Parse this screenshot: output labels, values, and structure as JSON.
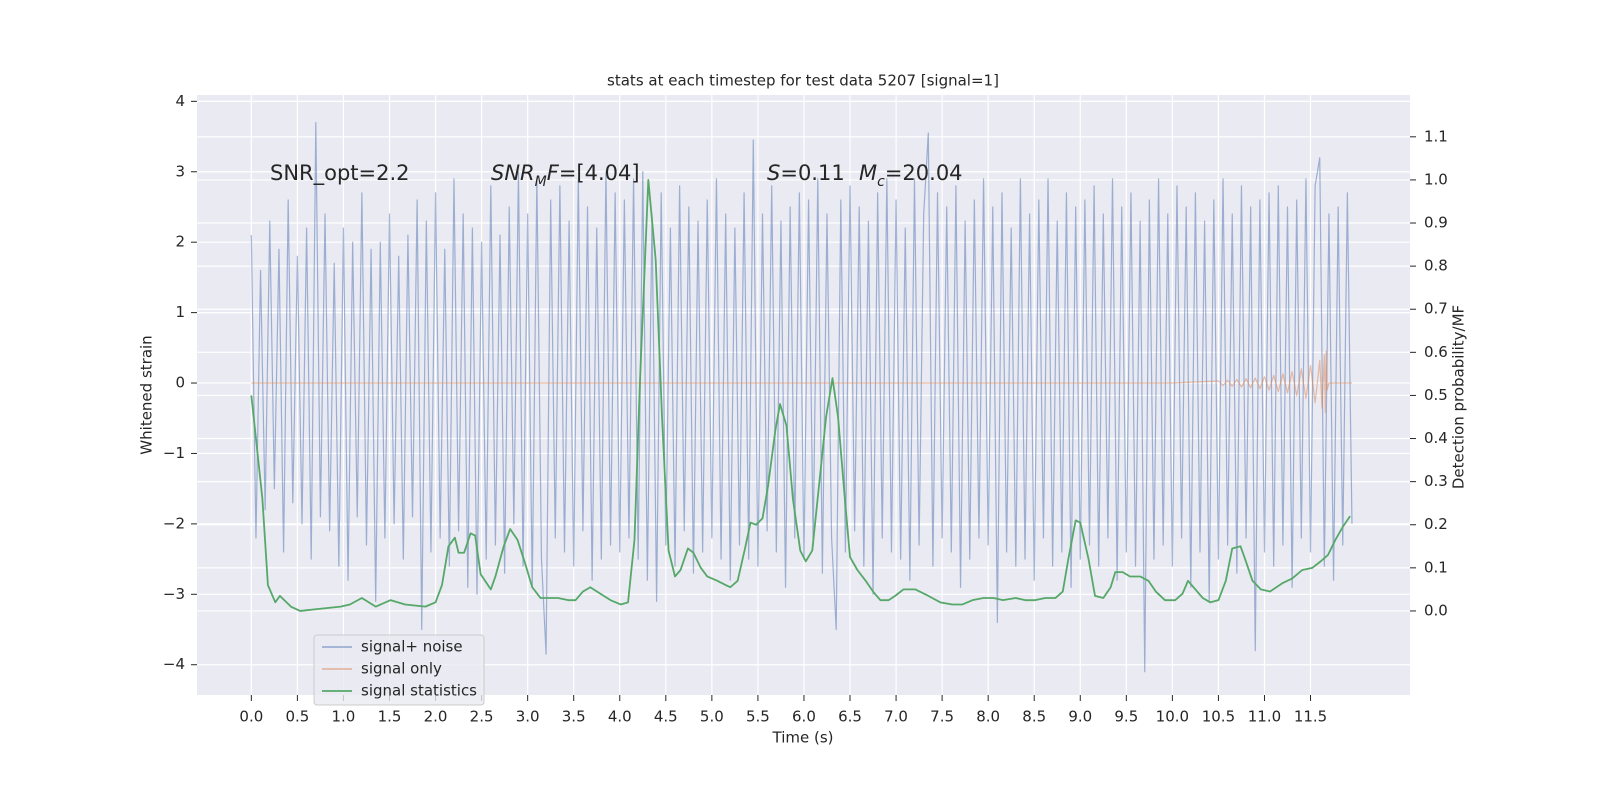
{
  "chart_data": {
    "type": "line",
    "title": "stats at each timestep for test data 5207 [signal=1]",
    "xlabel": "Time (s)",
    "ylabel": "Whitened strain",
    "y2label": "Detection probability/MF",
    "xlim": [
      -0.59,
      12.58
    ],
    "ylim": [
      -4.43,
      4.09
    ],
    "y2lim": [
      -0.195,
      1.197
    ],
    "xticks": [
      {
        "value": 0,
        "label": "0.0"
      },
      0.5,
      {
        "value": 1,
        "label": "1.0"
      },
      1.5,
      {
        "value": 2,
        "label": "2.0"
      },
      2.5,
      {
        "value": 3,
        "label": "3.0"
      },
      3.5,
      {
        "value": 4,
        "label": "4.0"
      },
      4.5,
      {
        "value": 5,
        "label": "5.0"
      },
      5.5,
      {
        "value": 6,
        "label": "6.0"
      },
      6.5,
      {
        "value": 7,
        "label": "7.0"
      },
      7.5,
      {
        "value": 8,
        "label": "8.0"
      },
      8.5,
      {
        "value": 9,
        "label": "9.0"
      },
      9.5,
      {
        "value": 10,
        "label": "10.0"
      },
      10.5,
      {
        "value": 11,
        "label": "11.0"
      },
      11.5
    ],
    "yticks": [
      {
        "value": -4,
        "label": "−4"
      },
      {
        "value": -3,
        "label": "−3"
      },
      {
        "value": -2,
        "label": "−2"
      },
      {
        "value": -1,
        "label": "−1"
      },
      0,
      1,
      2,
      3,
      4
    ],
    "y2ticks": [
      {
        "value": 0,
        "label": "0.0"
      },
      0.1,
      0.2,
      0.3,
      0.4,
      0.5,
      0.6,
      0.7,
      0.8,
      0.9,
      {
        "value": 1,
        "label": "1.0"
      },
      1.1
    ],
    "grid": true,
    "legend": "lower left",
    "annotations": [
      [
        {
          "text": "SNR_opt=2.2"
        }
      ],
      [
        {
          "text": "SNR",
          "style": "italic"
        },
        {
          "text": "M",
          "style": "italic-sub"
        },
        {
          "text": "F",
          "style": "italic"
        },
        {
          "text": "=[4.04]"
        }
      ],
      [
        {
          "text": "S",
          "style": "italic"
        },
        {
          "text": "=0.11"
        }
      ],
      [
        {
          "text": "M",
          "style": "italic"
        },
        {
          "text": "c",
          "style": "italic-sub"
        },
        {
          "text": "=20.04"
        }
      ]
    ],
    "series": [
      {
        "name": "signal+ noise",
        "color": "#4c72b0",
        "opacity": 0.5,
        "axis": "y",
        "x": [
          0,
          0.05,
          0.1,
          0.15,
          0.2,
          0.25,
          0.3,
          0.35,
          0.4,
          0.45,
          0.5,
          0.55,
          0.6,
          0.65,
          0.7,
          0.75,
          0.8,
          0.85,
          0.9,
          0.95,
          1,
          1.05,
          1.1,
          1.15,
          1.2,
          1.25,
          1.3,
          1.35,
          1.4,
          1.45,
          1.5,
          1.55,
          1.6,
          1.65,
          1.7,
          1.75,
          1.8,
          1.85,
          1.9,
          1.95,
          2,
          2.05,
          2.1,
          2.15,
          2.2,
          2.25,
          2.3,
          2.35,
          2.4,
          2.45,
          2.5,
          2.55,
          2.6,
          2.65,
          2.7,
          2.75,
          2.8,
          2.85,
          2.9,
          2.95,
          3,
          3.05,
          3.1,
          3.15,
          3.2,
          3.25,
          3.3,
          3.35,
          3.4,
          3.45,
          3.5,
          3.55,
          3.6,
          3.65,
          3.7,
          3.75,
          3.8,
          3.85,
          3.9,
          3.95,
          4,
          4.05,
          4.1,
          4.15,
          4.2,
          4.25,
          4.3,
          4.35,
          4.4,
          4.45,
          4.5,
          4.55,
          4.6,
          4.65,
          4.7,
          4.75,
          4.8,
          4.85,
          4.9,
          4.95,
          5,
          5.05,
          5.1,
          5.15,
          5.2,
          5.25,
          5.3,
          5.35,
          5.4,
          5.45,
          5.5,
          5.55,
          5.6,
          5.65,
          5.7,
          5.75,
          5.8,
          5.85,
          5.9,
          5.95,
          6,
          6.05,
          6.1,
          6.15,
          6.2,
          6.25,
          6.3,
          6.35,
          6.4,
          6.45,
          6.5,
          6.55,
          6.6,
          6.65,
          6.7,
          6.75,
          6.8,
          6.85,
          6.9,
          6.95,
          7,
          7.05,
          7.1,
          7.15,
          7.2,
          7.25,
          7.3,
          7.35,
          7.4,
          7.45,
          7.5,
          7.55,
          7.6,
          7.65,
          7.7,
          7.75,
          7.8,
          7.85,
          7.9,
          7.95,
          8,
          8.05,
          8.1,
          8.15,
          8.2,
          8.25,
          8.3,
          8.35,
          8.4,
          8.45,
          8.5,
          8.55,
          8.6,
          8.65,
          8.7,
          8.75,
          8.8,
          8.85,
          8.9,
          8.95,
          9,
          9.05,
          9.1,
          9.15,
          9.2,
          9.25,
          9.3,
          9.35,
          9.4,
          9.45,
          9.5,
          9.55,
          9.6,
          9.65,
          9.7,
          9.75,
          9.8,
          9.85,
          9.9,
          9.95,
          10,
          10.05,
          10.1,
          10.15,
          10.2,
          10.25,
          10.3,
          10.35,
          10.4,
          10.45,
          10.5,
          10.55,
          10.6,
          10.65,
          10.7,
          10.75,
          10.8,
          10.85,
          10.9,
          10.95,
          11,
          11.05,
          11.1,
          11.15,
          11.2,
          11.25,
          11.3,
          11.35,
          11.4,
          11.45,
          11.5,
          11.55,
          11.6,
          11.65,
          11.7,
          11.75,
          11.8,
          11.85,
          11.9,
          11.95
        ],
        "values": [
          2.1,
          -2.2,
          1.6,
          -1.8,
          2.3,
          -1.5,
          1.9,
          -2.4,
          2.6,
          -1.7,
          1.8,
          -2.0,
          2.2,
          -2.5,
          3.7,
          -1.9,
          2.4,
          -2.1,
          1.7,
          -2.6,
          2.2,
          -2.8,
          2.0,
          -1.9,
          2.7,
          -2.3,
          1.9,
          -3.1,
          2.0,
          -2.2,
          2.4,
          -2.0,
          1.8,
          -2.5,
          2.1,
          -1.9,
          2.6,
          -3.5,
          2.3,
          -2.4,
          2.7,
          -2.2,
          1.9,
          -2.6,
          2.9,
          -2.1,
          2.4,
          -2.9,
          2.2,
          -3.0,
          2.0,
          -2.5,
          2.8,
          -2.3,
          2.1,
          -2.7,
          2.5,
          -2.0,
          3.0,
          -2.6,
          2.4,
          -2.9,
          2.9,
          -2.5,
          -3.85,
          2.6,
          -2.2,
          2.8,
          -2.4,
          2.3,
          -2.6,
          2.9,
          -2.1,
          2.5,
          -2.8,
          2.2,
          -2.5,
          3.0,
          -2.3,
          2.7,
          -2.4,
          2.6,
          -2.2,
          2.9,
          -2.5,
          3.0,
          -2.8,
          2.4,
          -3.1,
          2.7,
          -2.3,
          2.2,
          -2.6,
          2.8,
          -2.1,
          2.5,
          -2.7,
          2.3,
          -2.4,
          2.6,
          -2.2,
          2.9,
          -2.5,
          2.4,
          -2.8,
          2.2,
          -2.3,
          2.7,
          -2.5,
          3.45,
          -2.6,
          2.4,
          -2.1,
          2.8,
          -2.4,
          2.3,
          -2.9,
          2.5,
          -2.2,
          2.7,
          -2.5,
          2.6,
          -2.3,
          2.9,
          -2.7,
          2.4,
          -2.2,
          -3.5,
          2.6,
          -2.4,
          2.8,
          -2.1,
          2.5,
          -2.6,
          2.3,
          -3.0,
          2.7,
          -2.2,
          2.9,
          -2.4,
          2.6,
          -2.5,
          2.2,
          -2.8,
          2.9,
          -2.3,
          2.4,
          3.55,
          -2.6,
          2.7,
          -2.2,
          2.5,
          -2.4,
          2.8,
          -2.9,
          2.3,
          -2.5,
          2.6,
          -2.2,
          2.9,
          -2.3,
          2.5,
          -3.4,
          2.7,
          -2.4,
          2.2,
          -2.6,
          2.9,
          -2.5,
          2.4,
          -2.8,
          2.6,
          -2.2,
          2.9,
          -2.6,
          2.3,
          -2.4,
          2.7,
          -2.9,
          2.5,
          -2.5,
          2.6,
          -2.3,
          2.8,
          -2.6,
          2.4,
          -2.2,
          2.9,
          -2.8,
          2.5,
          -2.4,
          2.7,
          -2.6,
          2.3,
          -4.1,
          2.6,
          -2.5,
          2.9,
          -2.3,
          2.4,
          -2.6,
          2.8,
          -2.2,
          2.5,
          -2.9,
          2.7,
          -2.4,
          2.3,
          -3.1,
          2.6,
          -2.5,
          2.9,
          -2.3,
          2.4,
          -2.7,
          2.8,
          -2.2,
          2.5,
          -3.8,
          2.6,
          -2.4,
          2.7,
          -2.6,
          2.8,
          -2.3,
          2.5,
          -2.9,
          2.6,
          -2.2,
          2.9,
          -2.4,
          2.8,
          3.2,
          -2.6,
          2.4,
          -2.8,
          2.5,
          -2.3,
          2.7,
          -2.0
        ]
      },
      {
        "name": "signal only",
        "color": "#dd8452",
        "opacity": 0.5,
        "axis": "y",
        "x": [
          0,
          10,
          10.5,
          10.55,
          10.6,
          10.65,
          10.7,
          10.75,
          10.8,
          10.85,
          10.9,
          10.95,
          11,
          11.05,
          11.1,
          11.15,
          11.2,
          11.25,
          11.3,
          11.35,
          11.4,
          11.45,
          11.5,
          11.55,
          11.6,
          11.625,
          11.65,
          11.66,
          11.67,
          11.68,
          11.7,
          11.95
        ],
        "values": [
          0,
          0,
          0.03,
          -0.035,
          0.04,
          -0.045,
          0.05,
          -0.055,
          0.06,
          -0.065,
          0.07,
          -0.08,
          0.09,
          -0.1,
          0.11,
          -0.12,
          0.13,
          -0.14,
          0.16,
          -0.18,
          0.2,
          -0.22,
          0.25,
          -0.28,
          0.32,
          -0.36,
          0.4,
          -0.42,
          0.45,
          -0.1,
          0,
          0
        ]
      },
      {
        "name": "signal statistics",
        "color": "#55a868",
        "opacity": 1,
        "axis": "y2",
        "x": [
          0,
          0.12,
          0.18,
          0.26,
          0.31,
          0.43,
          0.53,
          0.75,
          0.97,
          1.07,
          1.2,
          1.35,
          1.51,
          1.67,
          1.89,
          2.0,
          2.07,
          2.14,
          2.21,
          2.25,
          2.31,
          2.38,
          2.43,
          2.49,
          2.6,
          2.65,
          2.74,
          2.81,
          2.89,
          2.98,
          3.05,
          3.14,
          3.25,
          3.33,
          3.44,
          3.52,
          3.6,
          3.68,
          3.79,
          3.9,
          4.01,
          4.09,
          4.16,
          4.22,
          4.31,
          4.39,
          4.46,
          4.53,
          4.6,
          4.66,
          4.74,
          4.8,
          4.88,
          4.95,
          5.06,
          5.15,
          5.2,
          5.28,
          5.36,
          5.42,
          5.48,
          5.55,
          5.61,
          5.69,
          5.74,
          5.81,
          5.88,
          5.96,
          6.02,
          6.09,
          6.18,
          6.24,
          6.31,
          6.37,
          6.44,
          6.5,
          6.58,
          6.67,
          6.75,
          6.83,
          6.92,
          6.99,
          7.08,
          7.21,
          7.35,
          7.48,
          7.61,
          7.72,
          7.83,
          7.95,
          8.06,
          8.16,
          8.3,
          8.4,
          8.51,
          8.62,
          8.73,
          8.81,
          8.87,
          8.95,
          9.0,
          9.09,
          9.16,
          9.25,
          9.33,
          9.38,
          9.46,
          9.54,
          9.65,
          9.74,
          9.82,
          9.92,
          10.03,
          10.11,
          10.17,
          10.25,
          10.33,
          10.41,
          10.5,
          10.58,
          10.65,
          10.74,
          10.79,
          10.87,
          10.96,
          11.06,
          11.2,
          11.3,
          11.41,
          11.52,
          11.61,
          11.69,
          11.77,
          11.85,
          11.93
        ],
        "values": [
          0.5,
          0.26,
          0.06,
          0.02,
          0.035,
          0.01,
          0.0,
          0.005,
          0.01,
          0.015,
          0.03,
          0.01,
          0.025,
          0.015,
          0.01,
          0.02,
          0.06,
          0.15,
          0.17,
          0.135,
          0.135,
          0.18,
          0.175,
          0.085,
          0.05,
          0.08,
          0.15,
          0.19,
          0.165,
          0.105,
          0.055,
          0.03,
          0.03,
          0.03,
          0.025,
          0.025,
          0.045,
          0.055,
          0.04,
          0.025,
          0.015,
          0.02,
          0.165,
          0.535,
          1.0,
          0.815,
          0.445,
          0.14,
          0.08,
          0.095,
          0.145,
          0.135,
          0.1,
          0.08,
          0.07,
          0.06,
          0.055,
          0.07,
          0.145,
          0.205,
          0.2,
          0.215,
          0.29,
          0.42,
          0.48,
          0.43,
          0.26,
          0.14,
          0.115,
          0.14,
          0.325,
          0.45,
          0.54,
          0.45,
          0.27,
          0.125,
          0.095,
          0.07,
          0.045,
          0.025,
          0.025,
          0.035,
          0.05,
          0.05,
          0.035,
          0.02,
          0.015,
          0.015,
          0.025,
          0.03,
          0.03,
          0.025,
          0.03,
          0.025,
          0.025,
          0.03,
          0.03,
          0.045,
          0.12,
          0.21,
          0.205,
          0.12,
          0.035,
          0.03,
          0.055,
          0.09,
          0.09,
          0.08,
          0.08,
          0.07,
          0.045,
          0.025,
          0.025,
          0.04,
          0.07,
          0.05,
          0.03,
          0.02,
          0.025,
          0.07,
          0.145,
          0.15,
          0.12,
          0.07,
          0.05,
          0.045,
          0.065,
          0.075,
          0.095,
          0.1,
          0.115,
          0.13,
          0.165,
          0.195,
          0.22
        ]
      }
    ]
  }
}
